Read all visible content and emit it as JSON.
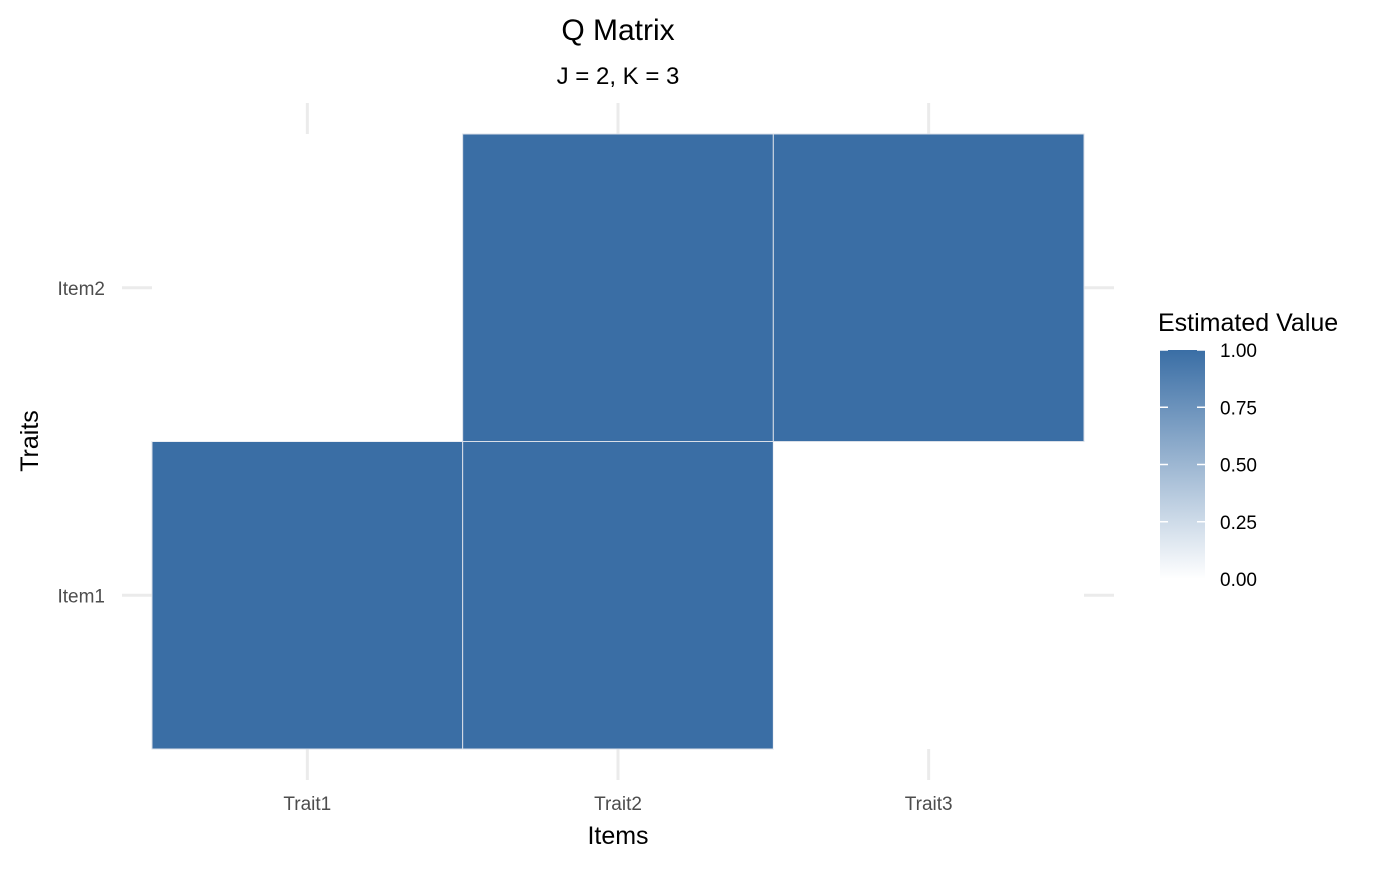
{
  "chart_data": {
    "type": "heatmap",
    "title": "Q Matrix",
    "subtitle": "J = 2, K = 3",
    "xlabel": "Items",
    "ylabel": "Traits",
    "x_categories": [
      "Trait1",
      "Trait2",
      "Trait3"
    ],
    "y_categories": [
      "Item1",
      "Item2"
    ],
    "cells": [
      {
        "x": "Trait1",
        "y": "Item1",
        "value": 1
      },
      {
        "x": "Trait2",
        "y": "Item1",
        "value": 1
      },
      {
        "x": "Trait3",
        "y": "Item1",
        "value": 0
      },
      {
        "x": "Trait1",
        "y": "Item2",
        "value": 0
      },
      {
        "x": "Trait2",
        "y": "Item2",
        "value": 1
      },
      {
        "x": "Trait3",
        "y": "Item2",
        "value": 1
      }
    ],
    "legend": {
      "title": "Estimated Value",
      "position": "right",
      "breaks": [
        1.0,
        0.75,
        0.5,
        0.25,
        0.0
      ],
      "labels": [
        "1.00",
        "0.75",
        "0.50",
        "0.25",
        "0.00"
      ],
      "limits": [
        0,
        1
      ]
    },
    "color_low": "#ffffff",
    "color_high": "#3a6ea5",
    "grid": true
  }
}
